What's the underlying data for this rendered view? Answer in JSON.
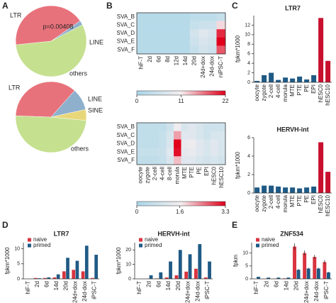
{
  "panel_labels": [
    "A",
    "B",
    "C",
    "D",
    "E"
  ],
  "chart_data": [
    {
      "type": "pie",
      "annotation": "p=0.00408",
      "categories": [
        "LTR",
        "LINE",
        "others"
      ],
      "values": [
        42,
        2,
        56
      ],
      "colors": [
        "#e8727b",
        "#8fb0cc",
        "#c5e08f"
      ]
    },
    {
      "type": "pie",
      "categories": [
        "LTR",
        "LINE",
        "SINE",
        "others"
      ],
      "values": [
        36,
        10,
        5,
        49
      ],
      "colors": [
        "#e8727b",
        "#8fb0cc",
        "#e8d77a",
        "#c5e08f"
      ]
    },
    {
      "type": "heatmap",
      "rows": [
        "SVA_B",
        "SVA_C",
        "SVA_D",
        "SVA_E",
        "SVA_F"
      ],
      "columns": [
        "hiF-T",
        "2d",
        "6d",
        "8d",
        "12d",
        "14d",
        "20d",
        "24d+dox",
        "24d-dox",
        "niPSC-T"
      ],
      "values": [
        [
          2,
          2,
          2,
          2,
          2,
          2,
          3,
          3,
          3,
          4
        ],
        [
          2,
          2,
          2,
          2,
          2,
          2,
          4,
          5,
          5,
          12
        ],
        [
          2,
          2,
          2,
          2,
          2,
          2,
          6,
          8,
          7,
          20
        ],
        [
          2,
          2,
          2,
          2,
          2,
          2,
          5,
          7,
          6,
          22
        ],
        [
          2,
          2,
          2,
          2,
          2,
          2,
          4,
          6,
          5,
          18
        ]
      ],
      "clim": [
        0,
        22
      ],
      "cticks": [
        0,
        11,
        22
      ],
      "colormap": [
        "#a9d6e8",
        "#f5eef0",
        "#e0001b"
      ]
    },
    {
      "type": "heatmap",
      "rows": [
        "SVA_B",
        "SVA_C",
        "SVA_D",
        "SVA_E",
        "SVA_F"
      ],
      "columns": [
        "oocyte",
        "zygote",
        "2-cell",
        "4-cell",
        "8-cell",
        "morula",
        "MTE",
        "PTE",
        "PE",
        "EPI",
        "hESC0",
        "hESC10"
      ],
      "values": [
        [
          0.5,
          0.5,
          0.5,
          0.5,
          0.8,
          1.5,
          1,
          1.2,
          1,
          0.8,
          0.8,
          0.8
        ],
        [
          0.5,
          0.5,
          0.5,
          0.6,
          1,
          2.2,
          1.2,
          1.2,
          1,
          0.8,
          1,
          1
        ],
        [
          0.5,
          0.5,
          0.5,
          0.6,
          1,
          3.3,
          1.4,
          1.5,
          1.2,
          1,
          1.2,
          1
        ],
        [
          0.6,
          0.6,
          0.6,
          0.7,
          1.2,
          3.2,
          1.3,
          1.4,
          1.2,
          1,
          1.2,
          1
        ],
        [
          0.5,
          0.5,
          0.5,
          0.6,
          1,
          2,
          1.2,
          1.2,
          1,
          0.9,
          1,
          0.9
        ]
      ],
      "clim": [
        0,
        3.3
      ],
      "cticks": [
        0,
        1.6,
        3.3
      ],
      "colormap": [
        "#a9d6e8",
        "#f5eef0",
        "#e0001b"
      ]
    },
    {
      "type": "bar",
      "title": "LTR7",
      "y_label": "fpkm*1000",
      "categories": [
        "oocyte",
        "zygote",
        "2-cell",
        "4-cell",
        "morula",
        "MTE",
        "PTE",
        "PE",
        "EPI",
        "hESC0",
        "hESC10"
      ],
      "values": [
        0.3,
        1.5,
        2,
        0.5,
        1,
        0.8,
        1.2,
        0.6,
        1.5,
        13.5,
        4.5
      ],
      "colors": [
        "#1f5a85",
        "#1f5a85",
        "#1f5a85",
        "#1f5a85",
        "#1f5a85",
        "#1f5a85",
        "#1f5a85",
        "#1f5a85",
        "#1f5a85",
        "#c8102e",
        "#c8102e"
      ],
      "ylim": [
        0,
        14
      ],
      "yticks": [
        0,
        2,
        4,
        6,
        8,
        10,
        12
      ]
    },
    {
      "type": "bar",
      "title": "HERVH-int",
      "y_label": "fpkm*1000",
      "categories": [
        "oocyte",
        "zygote",
        "2-cell",
        "4-cell",
        "morula",
        "MTE",
        "PTE",
        "PE",
        "EPI",
        "hESC0",
        "hESC10"
      ],
      "values": [
        0.6,
        0.8,
        0.8,
        0.7,
        0.6,
        0.6,
        0.5,
        0.6,
        0.7,
        5.5,
        2.3
      ],
      "colors": [
        "#1f5a85",
        "#1f5a85",
        "#1f5a85",
        "#1f5a85",
        "#1f5a85",
        "#1f5a85",
        "#1f5a85",
        "#1f5a85",
        "#1f5a85",
        "#c8102e",
        "#c8102e"
      ],
      "ylim": [
        0,
        6
      ],
      "yticks": [
        0,
        2,
        4,
        6
      ]
    },
    {
      "type": "grouped_bar",
      "title": "LTR7",
      "y_label": "fpkm*1000",
      "categories": [
        "hiF-T",
        "2d",
        "6d",
        "14d",
        "20d",
        "24d+dox",
        "24d-dox",
        "iPSC-T"
      ],
      "series": [
        {
          "name": "naive",
          "color": "#d9343f",
          "values": [
            0,
            0.3,
            0.3,
            0.5,
            2.5,
            3,
            2.5,
            0.3
          ]
        },
        {
          "name": "primed",
          "color": "#1f5a85",
          "values": [
            0,
            0.2,
            0.5,
            1.5,
            7,
            6,
            11,
            8
          ]
        }
      ],
      "ylim": [
        0,
        12
      ],
      "yticks": [
        0,
        5,
        10
      ]
    },
    {
      "type": "grouped_bar",
      "title": "HERVH-int",
      "y_label": "fpkm*1000",
      "categories": [
        "hiF-T",
        "2d",
        "6d",
        "14d",
        "20d",
        "24d+dox",
        "24d-dox",
        "iPSC-T"
      ],
      "series": [
        {
          "name": "naive",
          "color": "#d9343f",
          "values": [
            0,
            0.2,
            0.3,
            1,
            2.5,
            5,
            7,
            1
          ]
        },
        {
          "name": "primed",
          "color": "#1f5a85",
          "values": [
            0,
            2.5,
            4.5,
            12,
            20,
            17,
            24,
            12
          ]
        }
      ],
      "ylim": [
        0,
        25
      ],
      "yticks": [
        0,
        10,
        20
      ]
    },
    {
      "type": "grouped_bar",
      "title": "ZNF534",
      "y_label": "fpkm",
      "categories": [
        "hiF-T",
        "2d",
        "6d",
        "14d",
        "20d",
        "24d+dox",
        "24d-dox",
        "iPSC-T"
      ],
      "series": [
        {
          "name": "naive",
          "color": "#d9343f",
          "values": [
            0,
            0.1,
            0.1,
            0.2,
            12.5,
            10,
            8.5,
            6.5
          ],
          "errors": [
            0,
            0,
            0,
            0,
            1.2,
            1,
            0.8,
            0.8
          ]
        },
        {
          "name": "primed",
          "color": "#1f5a85",
          "values": [
            0.8,
            0.5,
            0.5,
            0.5,
            3.5,
            4,
            4,
            2.5
          ],
          "errors": [
            0,
            0,
            0,
            0,
            0.3,
            0.3,
            0.3,
            0.2
          ]
        }
      ],
      "ylim": [
        0,
        14
      ],
      "yticks": [
        0,
        5,
        10
      ]
    }
  ]
}
